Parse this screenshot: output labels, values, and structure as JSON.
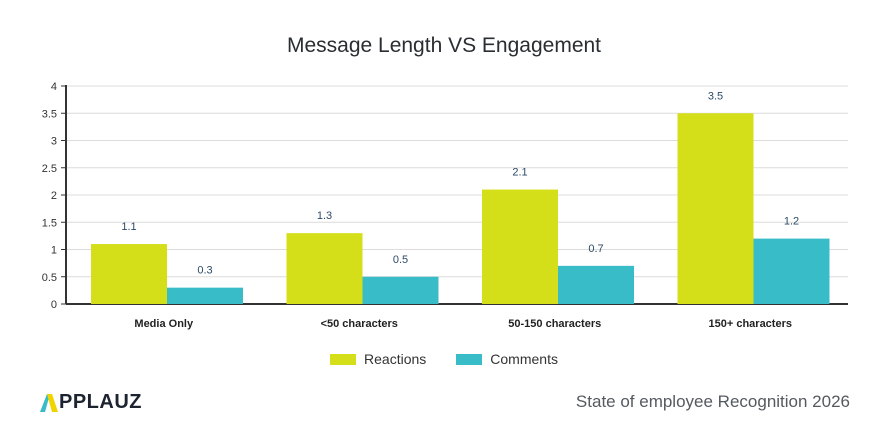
{
  "chart_data": {
    "type": "bar",
    "title": "Message Length VS Engagement",
    "categories": [
      "Media Only",
      "<50 characters",
      "50-150 characters",
      "150+ characters"
    ],
    "series": [
      {
        "name": "Reactions",
        "values": [
          1.1,
          1.3,
          2.1,
          3.5
        ],
        "color": "#d4df19"
      },
      {
        "name": "Comments",
        "values": [
          0.3,
          0.5,
          0.7,
          1.2
        ],
        "color": "#38bcc8"
      }
    ],
    "ylim": [
      0,
      4
    ],
    "yticks": [
      "0",
      "0.5",
      "1",
      "1.5",
      "2",
      "2.5",
      "3",
      "3.5",
      "4"
    ],
    "grid": true,
    "legend": "bottom"
  },
  "brand": {
    "logo": "APPLAUZ",
    "footer": "State of employee Recognition 2026"
  }
}
